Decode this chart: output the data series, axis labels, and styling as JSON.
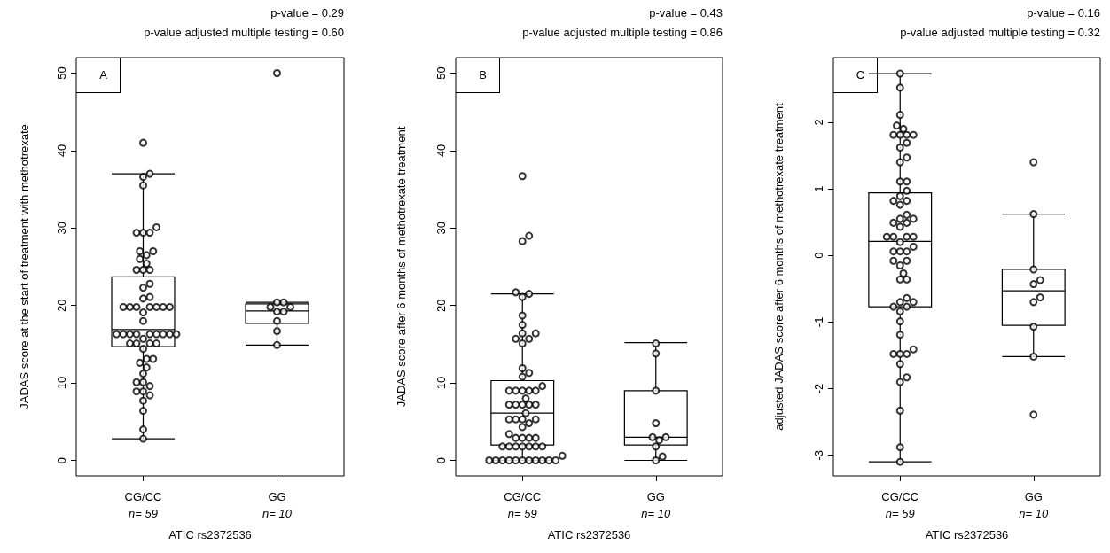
{
  "chart_data": [
    {
      "type": "box",
      "title": "p-value = 0.29",
      "subtitle": "p-value adjusted multiple testing = 0.60",
      "annotations": [
        "A"
      ],
      "xlabel": "ATIC rs2372536",
      "ylabel": "JADAS score at the start of treatment with methotrexate",
      "categories": [
        "CG/CC\nn= 59",
        "GG\nn= 10"
      ],
      "ylim": [
        -2,
        52
      ],
      "yticks": [
        0,
        10,
        20,
        30,
        40,
        50
      ],
      "marker": "circle",
      "boxes": [
        {
          "low": 2.8,
          "q1": 14.7,
          "median": 16.9,
          "q3": 23.7,
          "high": 37.0
        },
        {
          "low": 14.9,
          "q1": 17.7,
          "median": 19.3,
          "q3": 20.2,
          "high": 20.4
        }
      ],
      "series": [
        {
          "type": "scatter",
          "color": "#000000",
          "x": [
            "CG/CC\nn= 59",
            "CG/CC\nn= 59",
            "CG/CC\nn= 59",
            "CG/CC\nn= 59",
            "CG/CC\nn= 59",
            "CG/CC\nn= 59",
            "CG/CC\nn= 59",
            "CG/CC\nn= 59",
            "CG/CC\nn= 59",
            "CG/CC\nn= 59",
            "CG/CC\nn= 59",
            "CG/CC\nn= 59",
            "CG/CC\nn= 59",
            "CG/CC\nn= 59",
            "CG/CC\nn= 59",
            "CG/CC\nn= 59",
            "CG/CC\nn= 59",
            "CG/CC\nn= 59",
            "CG/CC\nn= 59",
            "CG/CC\nn= 59",
            "CG/CC\nn= 59",
            "CG/CC\nn= 59",
            "CG/CC\nn= 59",
            "CG/CC\nn= 59",
            "CG/CC\nn= 59",
            "CG/CC\nn= 59",
            "CG/CC\nn= 59",
            "CG/CC\nn= 59",
            "CG/CC\nn= 59",
            "CG/CC\nn= 59",
            "CG/CC\nn= 59",
            "CG/CC\nn= 59",
            "CG/CC\nn= 59",
            "CG/CC\nn= 59",
            "CG/CC\nn= 59",
            "CG/CC\nn= 59",
            "CG/CC\nn= 59",
            "CG/CC\nn= 59",
            "CG/CC\nn= 59",
            "CG/CC\nn= 59",
            "CG/CC\nn= 59",
            "CG/CC\nn= 59",
            "CG/CC\nn= 59",
            "CG/CC\nn= 59",
            "CG/CC\nn= 59",
            "CG/CC\nn= 59",
            "CG/CC\nn= 59",
            "CG/CC\nn= 59",
            "CG/CC\nn= 59",
            "CG/CC\nn= 59",
            "CG/CC\nn= 59",
            "CG/CC\nn= 59",
            "CG/CC\nn= 59",
            "CG/CC\nn= 59",
            "CG/CC\nn= 59",
            "CG/CC\nn= 59",
            "CG/CC\nn= 59",
            "CG/CC\nn= 59",
            "CG/CC\nn= 59",
            "GG\nn= 10",
            "GG\nn= 10",
            "GG\nn= 10",
            "GG\nn= 10",
            "GG\nn= 10",
            "GG\nn= 10",
            "GG\nn= 10",
            "GG\nn= 10",
            "GG\nn= 10",
            "GG\nn= 10"
          ],
          "values": [
            41.0,
            37.0,
            36.6,
            35.5,
            30.1,
            29.4,
            29.4,
            29.4,
            27.0,
            27.0,
            26.5,
            26.0,
            25.4,
            24.6,
            24.6,
            24.6,
            22.8,
            22.3,
            21.1,
            20.9,
            19.8,
            19.8,
            19.8,
            19.8,
            19.8,
            19.8,
            19.8,
            19.1,
            18.0,
            16.3,
            16.3,
            16.3,
            16.3,
            16.3,
            16.3,
            16.3,
            16.3,
            16.3,
            15.7,
            15.1,
            15.1,
            15.1,
            15.1,
            14.4,
            13.1,
            13.1,
            12.6,
            12.0,
            11.2,
            10.1,
            10.1,
            9.6,
            8.9,
            8.9,
            8.4,
            7.7,
            6.4,
            4.0,
            2.8,
            50.0,
            20.4,
            20.4,
            19.8,
            19.8,
            19.2,
            19.2,
            18.0,
            16.7,
            14.9
          ]
        }
      ]
    },
    {
      "type": "box",
      "title": "p-value = 0.43",
      "subtitle": "p-value adjusted multiple testing = 0.86",
      "annotations": [
        "B"
      ],
      "xlabel": "ATIC rs2372536",
      "ylabel": "JADAS score after 6 months of methotrexate treatment",
      "categories": [
        "CG/CC\nn= 59",
        "GG\nn= 10"
      ],
      "ylim": [
        -2,
        52
      ],
      "yticks": [
        0,
        10,
        20,
        30,
        40,
        50
      ],
      "marker": "circle",
      "boxes": [
        {
          "low": 0,
          "q1": 2.0,
          "median": 6.1,
          "q3": 10.3,
          "high": 21.5
        },
        {
          "low": 0,
          "q1": 2.0,
          "median": 3.0,
          "q3": 9.0,
          "high": 15.2
        }
      ],
      "series": [
        {
          "type": "scatter",
          "color": "#000000",
          "x": [
            "CG/CC\nn= 59",
            "CG/CC\nn= 59",
            "CG/CC\nn= 59",
            "CG/CC\nn= 59",
            "CG/CC\nn= 59",
            "CG/CC\nn= 59",
            "CG/CC\nn= 59",
            "CG/CC\nn= 59",
            "CG/CC\nn= 59",
            "CG/CC\nn= 59",
            "CG/CC\nn= 59",
            "CG/CC\nn= 59",
            "CG/CC\nn= 59",
            "CG/CC\nn= 59",
            "CG/CC\nn= 59",
            "CG/CC\nn= 59",
            "CG/CC\nn= 59",
            "CG/CC\nn= 59",
            "CG/CC\nn= 59",
            "CG/CC\nn= 59",
            "CG/CC\nn= 59",
            "CG/CC\nn= 59",
            "CG/CC\nn= 59",
            "CG/CC\nn= 59",
            "CG/CC\nn= 59",
            "CG/CC\nn= 59",
            "CG/CC\nn= 59",
            "CG/CC\nn= 59",
            "CG/CC\nn= 59",
            "CG/CC\nn= 59",
            "CG/CC\nn= 59",
            "CG/CC\nn= 59",
            "CG/CC\nn= 59",
            "CG/CC\nn= 59",
            "CG/CC\nn= 59",
            "CG/CC\nn= 59",
            "CG/CC\nn= 59",
            "CG/CC\nn= 59",
            "CG/CC\nn= 59",
            "CG/CC\nn= 59",
            "CG/CC\nn= 59",
            "CG/CC\nn= 59",
            "CG/CC\nn= 59",
            "CG/CC\nn= 59",
            "CG/CC\nn= 59",
            "CG/CC\nn= 59",
            "CG/CC\nn= 59",
            "CG/CC\nn= 59",
            "CG/CC\nn= 59",
            "CG/CC\nn= 59",
            "CG/CC\nn= 59",
            "CG/CC\nn= 59",
            "CG/CC\nn= 59",
            "CG/CC\nn= 59",
            "CG/CC\nn= 59",
            "CG/CC\nn= 59",
            "CG/CC\nn= 59",
            "CG/CC\nn= 59",
            "CG/CC\nn= 59",
            "GG\nn= 10",
            "GG\nn= 10",
            "GG\nn= 10",
            "GG\nn= 10",
            "GG\nn= 10",
            "GG\nn= 10",
            "GG\nn= 10",
            "GG\nn= 10",
            "GG\nn= 10",
            "GG\nn= 10"
          ],
          "values": [
            36.7,
            29.0,
            28.3,
            21.5,
            21.7,
            21.1,
            18.7,
            17.5,
            16.4,
            16.4,
            15.7,
            15.7,
            15.1,
            11.9,
            11.3,
            10.8,
            9.6,
            9.0,
            9.0,
            9.0,
            9.0,
            9.0,
            8.0,
            7.2,
            7.2,
            7.2,
            7.2,
            7.2,
            6.1,
            5.3,
            5.3,
            5.3,
            5.3,
            4.8,
            4.3,
            3.4,
            2.9,
            2.9,
            2.9,
            2.9,
            1.8,
            1.8,
            1.8,
            1.8,
            1.8,
            1.8,
            1.8,
            0.6,
            0,
            0,
            0,
            0,
            0,
            0,
            0,
            0,
            0,
            0,
            0,
            15.1,
            13.8,
            9.0,
            4.8,
            3.0,
            3.0,
            2.6,
            1.8,
            0.5,
            0
          ]
        }
      ]
    },
    {
      "type": "box",
      "title": "p-value = 0.16",
      "subtitle": "p-value adjusted multiple testing = 0.32",
      "annotations": [
        "C"
      ],
      "xlabel": "ATIC rs2372536",
      "ylabel": "adjusted JADAS score after 6 months of methotrexate treatment",
      "categories": [
        "CG/CC\nn= 59",
        "GG\nn= 10"
      ],
      "ylim": [
        -3.31,
        2.97
      ],
      "yticks": [
        -3,
        -2,
        -1,
        0,
        1,
        2
      ],
      "marker": "circle",
      "boxes": [
        {
          "low": -3.1,
          "q1": -0.77,
          "median": 0.21,
          "q3": 0.94,
          "high": 2.73
        },
        {
          "low": -1.52,
          "q1": -1.05,
          "median": -0.53,
          "q3": -0.21,
          "high": 0.62
        }
      ],
      "series": [
        {
          "type": "scatter",
          "color": "#000000",
          "x": [
            "CG/CC\nn= 59",
            "CG/CC\nn= 59",
            "CG/CC\nn= 59",
            "CG/CC\nn= 59",
            "CG/CC\nn= 59",
            "CG/CC\nn= 59",
            "CG/CC\nn= 59",
            "CG/CC\nn= 59",
            "CG/CC\nn= 59",
            "CG/CC\nn= 59",
            "CG/CC\nn= 59",
            "CG/CC\nn= 59",
            "CG/CC\nn= 59",
            "CG/CC\nn= 59",
            "CG/CC\nn= 59",
            "CG/CC\nn= 59",
            "CG/CC\nn= 59",
            "CG/CC\nn= 59",
            "CG/CC\nn= 59",
            "CG/CC\nn= 59",
            "CG/CC\nn= 59",
            "CG/CC\nn= 59",
            "CG/CC\nn= 59",
            "CG/CC\nn= 59",
            "CG/CC\nn= 59",
            "CG/CC\nn= 59",
            "CG/CC\nn= 59",
            "CG/CC\nn= 59",
            "CG/CC\nn= 59",
            "CG/CC\nn= 59",
            "CG/CC\nn= 59",
            "CG/CC\nn= 59",
            "CG/CC\nn= 59",
            "CG/CC\nn= 59",
            "CG/CC\nn= 59",
            "CG/CC\nn= 59",
            "CG/CC\nn= 59",
            "CG/CC\nn= 59",
            "CG/CC\nn= 59",
            "CG/CC\nn= 59",
            "CG/CC\nn= 59",
            "CG/CC\nn= 59",
            "CG/CC\nn= 59",
            "CG/CC\nn= 59",
            "CG/CC\nn= 59",
            "CG/CC\nn= 59",
            "CG/CC\nn= 59",
            "CG/CC\nn= 59",
            "CG/CC\nn= 59",
            "CG/CC\nn= 59",
            "CG/CC\nn= 59",
            "CG/CC\nn= 59",
            "CG/CC\nn= 59",
            "CG/CC\nn= 59",
            "CG/CC\nn= 59",
            "CG/CC\nn= 59",
            "CG/CC\nn= 59",
            "CG/CC\nn= 59",
            "CG/CC\nn= 59",
            "GG\nn= 10",
            "GG\nn= 10",
            "GG\nn= 10",
            "GG\nn= 10",
            "GG\nn= 10",
            "GG\nn= 10",
            "GG\nn= 10",
            "GG\nn= 10",
            "GG\nn= 10",
            "GG\nn= 10"
          ],
          "values": [
            2.73,
            2.52,
            2.11,
            1.95,
            1.9,
            1.81,
            1.81,
            1.81,
            1.81,
            1.69,
            1.62,
            1.47,
            1.4,
            1.11,
            1.11,
            0.97,
            0.89,
            0.82,
            0.82,
            0.76,
            0.61,
            0.55,
            0.55,
            0.49,
            0.49,
            0.43,
            0.28,
            0.28,
            0.28,
            0.28,
            0.2,
            0.13,
            0.06,
            0.06,
            0.06,
            -0.08,
            -0.08,
            -0.15,
            -0.27,
            -0.36,
            -0.36,
            -0.64,
            -0.7,
            -0.7,
            -0.77,
            -0.77,
            -0.84,
            -0.99,
            -1.19,
            -1.41,
            -1.48,
            -1.48,
            -1.48,
            -1.63,
            -1.83,
            -1.9,
            -2.33,
            -2.88,
            -3.1,
            1.4,
            0.62,
            -0.21,
            -0.37,
            -0.43,
            -0.63,
            -0.7,
            -1.07,
            -1.52,
            -2.39
          ]
        }
      ]
    }
  ]
}
